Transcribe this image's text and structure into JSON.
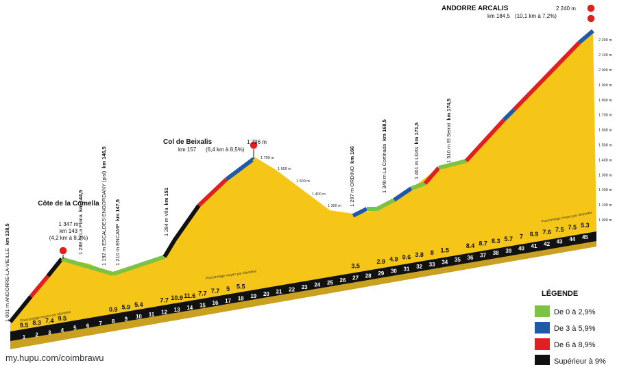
{
  "climbs": [
    {
      "name": "Côte de la Comella",
      "altitude": "1 347 m",
      "km": "km 143",
      "detail": "(4,2 km à 8,2%)"
    },
    {
      "name": "Col de Beixalis",
      "altitude": "1 796 m",
      "km": "km 157",
      "detail": "(6,4 km à 8,5%)"
    },
    {
      "name": "ANDORRE ARCALIS",
      "altitude": "2 240 m",
      "km": "km 184,5",
      "detail": "(10,1 km à 7,2%)"
    }
  ],
  "place_labels": [
    {
      "text": "1 001 m  ANDORRE-LA-VIEILLE",
      "km": "km 138,5"
    },
    {
      "text": "1 288 m  La Plana",
      "km": "km 144,5"
    },
    {
      "text": "1 192 m  ESCALDES-ENGORDANY (pisl)",
      "km": "km 146,5"
    },
    {
      "text": "1 210 m  ENCAMP",
      "km": "km 147,5"
    },
    {
      "text": "1 284 m  Vila",
      "km": "km 151"
    },
    {
      "text": "1 297 m  ORDINO",
      "km": "km 166"
    },
    {
      "text": "1 340 m  La Cortinada",
      "km": "km 168,5"
    },
    {
      "text": "1 401 m  Llorts",
      "km": "km 171,5"
    },
    {
      "text": "1 510 m  El Serrat",
      "km": "km 174,5"
    }
  ],
  "descent_altitudes": [
    "1 700 m",
    "1 600 m",
    "1 500 m",
    "1 400 m",
    "1 300 m"
  ],
  "altitude_axis": [
    "1 000 m",
    "1 100 m",
    "1 200 m",
    "1 300 m",
    "1 400 m",
    "1 500 m",
    "1 600 m",
    "1 700 m",
    "1 800 m",
    "1 900 m",
    "2 000 m",
    "2 100 m",
    "2 200 m"
  ],
  "km_marks": [
    {
      "km": "1",
      "grade": "9.5"
    },
    {
      "km": "2",
      "grade": "8.3"
    },
    {
      "km": "3",
      "grade": "7.4"
    },
    {
      "km": "4",
      "grade": "9.5"
    },
    {
      "km": "5"
    },
    {
      "km": "6"
    },
    {
      "km": "7"
    },
    {
      "km": "8",
      "grade": "0.9"
    },
    {
      "km": "9",
      "grade": "5.9"
    },
    {
      "km": "10",
      "grade": "5.4"
    },
    {
      "km": "11"
    },
    {
      "km": "12",
      "grade": "7.7"
    },
    {
      "km": "13",
      "grade": "10.9"
    },
    {
      "km": "14",
      "grade": "11.6"
    },
    {
      "km": "15",
      "grade": "7.7"
    },
    {
      "km": "16",
      "grade": "7.7"
    },
    {
      "km": "17",
      "grade": "5"
    },
    {
      "km": "18",
      "grade": "5.5"
    },
    {
      "km": "19"
    },
    {
      "km": "20"
    },
    {
      "km": "21"
    },
    {
      "km": "22"
    },
    {
      "km": "23"
    },
    {
      "km": "24"
    },
    {
      "km": "25"
    },
    {
      "km": "26"
    },
    {
      "km": "27",
      "grade": "3.5"
    },
    {
      "km": "28"
    },
    {
      "km": "29",
      "grade": "2.9"
    },
    {
      "km": "30",
      "grade": "4.9"
    },
    {
      "km": "31",
      "grade": "0.6"
    },
    {
      "km": "32",
      "grade": "3.8"
    },
    {
      "km": "33",
      "grade": "8"
    },
    {
      "km": "34",
      "grade": "1.5"
    },
    {
      "km": "35"
    },
    {
      "km": "36",
      "grade": "8.4"
    },
    {
      "km": "37",
      "grade": "8.7"
    },
    {
      "km": "38",
      "grade": "8.3"
    },
    {
      "km": "39",
      "grade": "5.7"
    },
    {
      "km": "40",
      "grade": "7"
    },
    {
      "km": "41",
      "grade": "6.9"
    },
    {
      "km": "42",
      "grade": "7.6"
    },
    {
      "km": "43",
      "grade": "7.5"
    },
    {
      "km": "44",
      "grade": "7.5"
    },
    {
      "km": "45",
      "grade": "5.3"
    }
  ],
  "notes": [
    "Pourcentage moyen par kilomètre",
    "Pourcentage moyen par kilomètre",
    "Pourcentage moyen par kilomètre"
  ],
  "legend": {
    "title": "LÉGENDE",
    "items": [
      {
        "label": "De 0 à 2,9%",
        "color": "#7dc242"
      },
      {
        "label": "De 3 à 5,9%",
        "color": "#1f5aa8"
      },
      {
        "label": "De 6 à 8,9%",
        "color": "#e02020"
      },
      {
        "label": "Supérieur à 9%",
        "color": "#111111"
      }
    ]
  },
  "watermark": "my.hupu.com/coimbrawu"
}
